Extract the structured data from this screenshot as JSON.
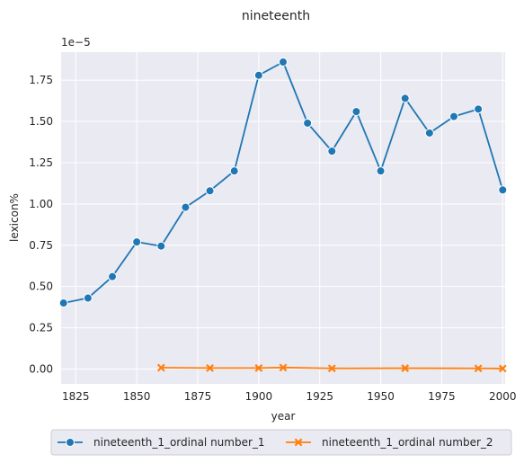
{
  "chart_data": {
    "type": "line",
    "title": "nineteenth",
    "xlabel": "year",
    "ylabel": "lexicon%",
    "y_offset_label": "1e−5",
    "xlim": [
      1819,
      2001
    ],
    "ylim": [
      -0.09,
      1.92
    ],
    "x_ticks": [
      1825,
      1850,
      1875,
      1900,
      1925,
      1950,
      1975,
      2000
    ],
    "y_ticks": [
      0.0,
      0.25,
      0.5,
      0.75,
      1.0,
      1.25,
      1.5,
      1.75
    ],
    "grid": true,
    "legend_placement": "bottom-center",
    "series": [
      {
        "name": "nineteenth_1_ordinal number_1",
        "color": "#1f77b4",
        "marker": "circle",
        "x": [
          1820,
          1830,
          1840,
          1850,
          1860,
          1870,
          1880,
          1890,
          1900,
          1910,
          1920,
          1930,
          1940,
          1950,
          1960,
          1970,
          1980,
          1990,
          2000
        ],
        "y": [
          0.4,
          0.43,
          0.56,
          0.77,
          0.745,
          0.98,
          1.08,
          1.2,
          1.78,
          1.86,
          1.49,
          1.32,
          1.56,
          1.2,
          1.64,
          1.43,
          1.53,
          1.575,
          1.085
        ]
      },
      {
        "name": "nineteenth_1_ordinal number_2",
        "color": "#ff7f0e",
        "marker": "x",
        "x": [
          1860,
          1880,
          1900,
          1910,
          1930,
          1960,
          1990,
          2000
        ],
        "y": [
          0.008,
          0.006,
          0.006,
          0.009,
          0.004,
          0.005,
          0.004,
          0.003
        ]
      }
    ]
  }
}
